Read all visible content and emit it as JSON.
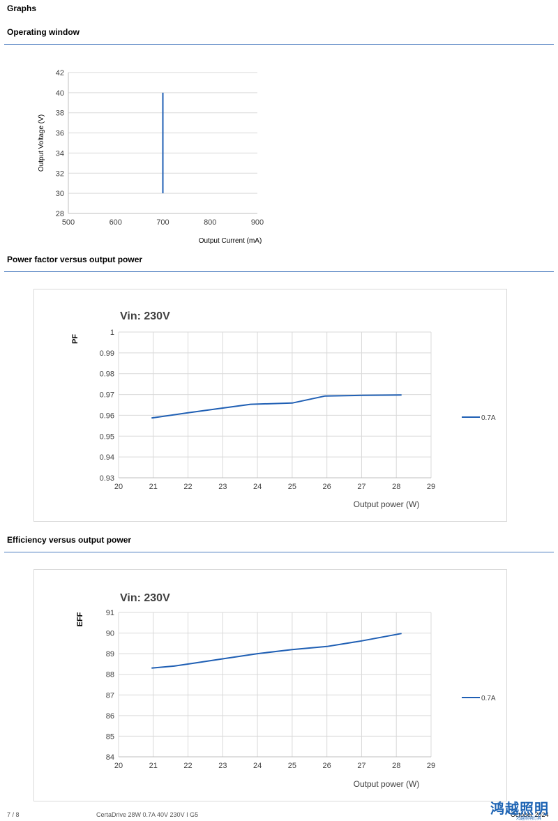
{
  "page": {
    "title": "Graphs",
    "sections": [
      {
        "title": "Operating window"
      },
      {
        "title": "Power factor versus output power"
      },
      {
        "title": "Efficiency versus output power"
      }
    ]
  },
  "footer": {
    "page": "7 / 8",
    "product": "CertaDrive 28W 0.7A 40V 230V I G5",
    "date": "October 2024",
    "logo": "鸿越照明",
    "logo_sub": "鸿越照明灯具"
  },
  "colors": {
    "series": "#1f5fb4",
    "rule": "#4a7bbf",
    "grid": "#d9d9d9"
  },
  "chart_data": [
    {
      "type": "line",
      "title": "",
      "xlabel": "Output Current (mA)",
      "ylabel": "Output Voltage (V)",
      "xlim": [
        500,
        900
      ],
      "ylim": [
        28,
        42
      ],
      "xticks": [
        500,
        600,
        700,
        800,
        900
      ],
      "yticks": [
        28,
        30,
        32,
        34,
        36,
        38,
        40,
        42
      ],
      "grid": true,
      "series": [
        {
          "name": "",
          "x": [
            700,
            700
          ],
          "y": [
            30,
            40
          ]
        }
      ]
    },
    {
      "type": "line",
      "title": "Vin: 230V",
      "xlabel": "Output power (W)",
      "ylabel": "PF",
      "xlim": [
        20,
        29
      ],
      "ylim": [
        0.93,
        1
      ],
      "xticks": [
        20,
        21,
        22,
        23,
        24,
        25,
        26,
        27,
        28,
        29
      ],
      "yticks": [
        0.93,
        0.94,
        0.95,
        0.96,
        0.97,
        0.98,
        0.99,
        1
      ],
      "grid": true,
      "legend": "right",
      "series": [
        {
          "name": "0.7A",
          "x": [
            20.95,
            22,
            23,
            23.8,
            25,
            25.95,
            27,
            28.15
          ],
          "y": [
            0.9587,
            0.9612,
            0.9635,
            0.9653,
            0.9659,
            0.9693,
            0.9696,
            0.9698
          ]
        }
      ]
    },
    {
      "type": "line",
      "title": "Vin: 230V",
      "xlabel": "Output power (W)",
      "ylabel": "EFF",
      "xlim": [
        20,
        29
      ],
      "ylim": [
        84,
        91
      ],
      "xticks": [
        20,
        21,
        22,
        23,
        24,
        25,
        26,
        27,
        28,
        29
      ],
      "yticks": [
        84,
        85,
        86,
        87,
        88,
        89,
        90,
        91
      ],
      "grid": true,
      "legend": "right",
      "series": [
        {
          "name": "0.7A",
          "x": [
            20.95,
            21.6,
            22.2,
            23,
            24,
            25,
            26,
            27,
            28.15
          ],
          "y": [
            88.3,
            88.4,
            88.55,
            88.75,
            89.0,
            89.2,
            89.35,
            89.62,
            89.98
          ]
        }
      ]
    }
  ]
}
